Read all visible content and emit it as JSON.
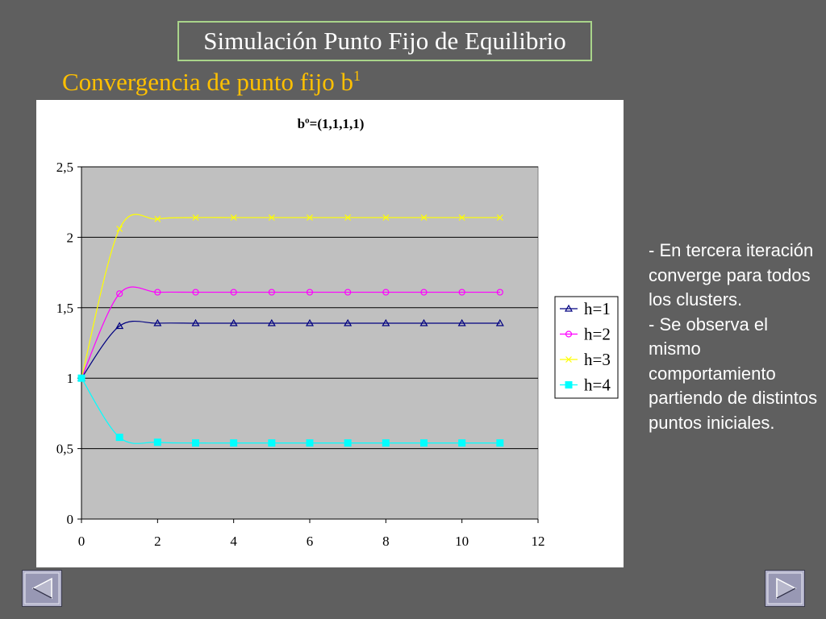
{
  "slide": {
    "title": "Simulación Punto Fijo de Equilibrio",
    "subtitle": "Convergencia de punto fijo b",
    "subtitle_superscript": "1",
    "notes": [
      "- En tercera iteración converge para todos los clusters.",
      "- Se observa el mismo comportamiento partiendo de distintos puntos iniciales."
    ],
    "colors": {
      "background": "#5f5f5f",
      "title_border": "#a9d48a",
      "subtitle": "#ffc000"
    }
  },
  "navigation": {
    "prev_icon": "left-triangle-icon",
    "next_icon": "right-triangle-icon"
  },
  "chart_data": {
    "type": "line",
    "title": "bº=(1,1,1,1)",
    "xlabel": "",
    "ylabel": "",
    "xlim": [
      0,
      12
    ],
    "ylim": [
      0,
      2.5
    ],
    "x_ticks": [
      0,
      2,
      4,
      6,
      8,
      10,
      12
    ],
    "x_tick_labels": [
      "0",
      "2",
      "4",
      "6",
      "8",
      "10",
      "12"
    ],
    "y_ticks": [
      0,
      0.5,
      1,
      1.5,
      2,
      2.5
    ],
    "y_tick_labels": [
      "0",
      "0,5",
      "1",
      "1,5",
      "2",
      "2,5"
    ],
    "grid": "horizontal",
    "plot_background": "#c0c0c0",
    "legend_position": "right",
    "x": [
      0,
      1,
      2,
      3,
      4,
      5,
      6,
      7,
      8,
      9,
      10,
      11
    ],
    "series": [
      {
        "name": "h=1",
        "color": "#000080",
        "marker": "triangle",
        "values": [
          1,
          1.37,
          1.39,
          1.39,
          1.39,
          1.39,
          1.39,
          1.39,
          1.39,
          1.39,
          1.39,
          1.39
        ]
      },
      {
        "name": "h=2",
        "color": "#ff00ff",
        "marker": "circle",
        "values": [
          1,
          1.6,
          1.61,
          1.61,
          1.61,
          1.61,
          1.61,
          1.61,
          1.61,
          1.61,
          1.61,
          1.61
        ]
      },
      {
        "name": "h=3",
        "color": "#ffff00",
        "marker": "x",
        "values": [
          1,
          2.06,
          2.13,
          2.14,
          2.14,
          2.14,
          2.14,
          2.14,
          2.14,
          2.14,
          2.14,
          2.14
        ]
      },
      {
        "name": "h=4",
        "color": "#00ffff",
        "marker": "square",
        "values": [
          1,
          0.58,
          0.545,
          0.54,
          0.54,
          0.54,
          0.54,
          0.54,
          0.54,
          0.54,
          0.54,
          0.54
        ]
      }
    ]
  }
}
